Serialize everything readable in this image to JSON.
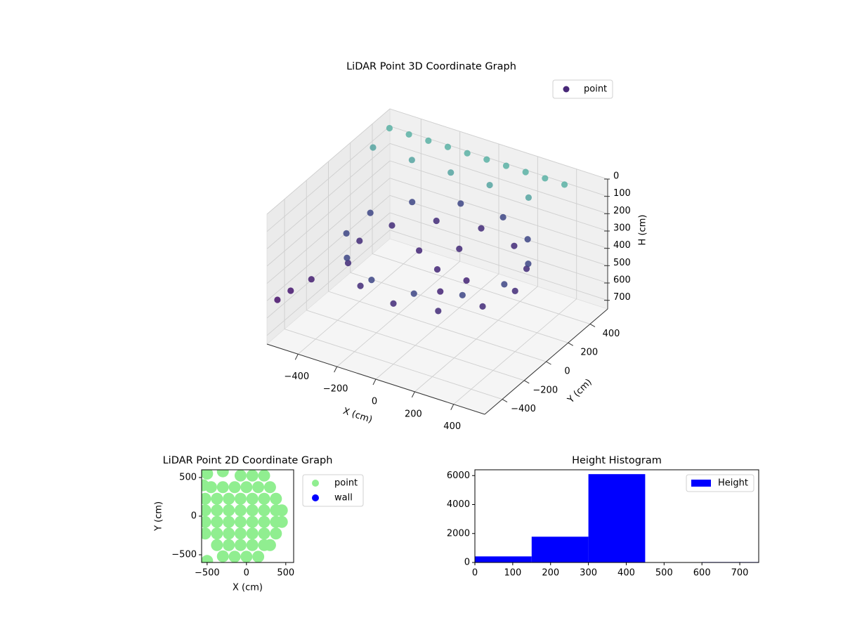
{
  "chart_data": [
    {
      "type": "scatter3d",
      "title": "LiDAR Point 3D Coordinate Graph",
      "xlabel": "X (cm)",
      "ylabel": "Y (cm)",
      "zlabel": "H (cm)",
      "xlim": [
        -560,
        560
      ],
      "ylim": [
        -560,
        560
      ],
      "zlim": [
        750,
        0
      ],
      "xticks": [
        {
          "value": -400,
          "label": "−400"
        },
        {
          "value": -200,
          "label": "−200"
        },
        0,
        200,
        400
      ],
      "yticks": [
        {
          "value": -400,
          "label": "−400"
        },
        {
          "value": -200,
          "label": "−200"
        },
        0,
        200,
        400
      ],
      "zticks": [
        0,
        100,
        200,
        300,
        400,
        500,
        600,
        700
      ],
      "grid": true,
      "legend": "upper right",
      "colormap": [
        "#5fbfa8",
        "#3b528b",
        "#46106b",
        "#46106b"
      ],
      "series": [
        {
          "name": "point",
          "color": "#482878",
          "x": [
            400,
            346,
            200,
            0,
            -200,
            -346,
            -400,
            -346,
            -200,
            0,
            200,
            346,
            406,
            297,
            109,
            -109,
            -297,
            -406,
            -406,
            -297,
            -109,
            109,
            297,
            406,
            0,
            150,
            -150,
            100,
            0,
            -500,
            -400,
            -300,
            -200,
            -100,
            0,
            100,
            200,
            300,
            400,
            -500,
            -300,
            -100,
            100,
            300,
            -540,
            -500,
            -450
          ],
          "y": [
            0,
            200,
            346,
            400,
            346,
            200,
            0,
            -200,
            -346,
            -400,
            -346,
            -200,
            109,
            297,
            406,
            406,
            297,
            109,
            -109,
            -297,
            -406,
            -406,
            -297,
            -109,
            0,
            0,
            100,
            -150,
            200,
            450,
            450,
            450,
            450,
            450,
            450,
            450,
            450,
            450,
            450,
            300,
            300,
            300,
            300,
            300,
            -500,
            -450,
            -350
          ],
          "z": [
            400,
            400,
            400,
            400,
            400,
            400,
            400,
            400,
            400,
            400,
            400,
            400,
            300,
            300,
            300,
            300,
            300,
            300,
            300,
            300,
            300,
            300,
            300,
            300,
            420,
            430,
            420,
            430,
            410,
            30,
            30,
            30,
            30,
            30,
            30,
            30,
            30,
            30,
            30,
            60,
            60,
            60,
            60,
            60,
            520,
            480,
            450
          ]
        }
      ]
    },
    {
      "type": "scatter",
      "title": "LiDAR Point 2D Coordinate Graph",
      "xlabel": "X (cm)",
      "ylabel": "Y (cm)",
      "xlim": [
        -570,
        600
      ],
      "ylim": [
        -600,
        600
      ],
      "xticks": [
        {
          "value": -500,
          "label": "−500"
        },
        0,
        500
      ],
      "yticks": [
        {
          "value": -500,
          "label": "−500"
        },
        0,
        500
      ],
      "grid": false,
      "legend": "outside upper right",
      "series": [
        {
          "name": "point",
          "color": "#90ee90",
          "x": [
            -75,
            75,
            225,
            -450,
            -300,
            -150,
            0,
            150,
            300,
            -525,
            -375,
            -225,
            -75,
            75,
            225,
            375,
            -525,
            -375,
            -225,
            -75,
            75,
            225,
            375,
            450,
            -525,
            -375,
            -225,
            -75,
            75,
            225,
            375,
            450,
            -525,
            -375,
            -225,
            -75,
            75,
            225,
            375,
            -375,
            -225,
            -75,
            75,
            225,
            300,
            -150,
            0,
            150,
            -500,
            -550,
            -300,
            -500,
            -300
          ],
          "y": [
            525,
            525,
            525,
            375,
            375,
            375,
            375,
            375,
            375,
            225,
            225,
            225,
            225,
            225,
            225,
            225,
            75,
            75,
            75,
            75,
            75,
            75,
            75,
            75,
            -75,
            -75,
            -75,
            -75,
            -75,
            -75,
            -75,
            -75,
            -225,
            -225,
            -225,
            -225,
            -225,
            -225,
            -225,
            -375,
            -375,
            -375,
            -375,
            -375,
            -375,
            -525,
            -525,
            -525,
            550,
            400,
            580,
            -580,
            -520
          ]
        },
        {
          "name": "wall",
          "color": "#0000ff",
          "x": [],
          "y": []
        }
      ]
    },
    {
      "type": "histogram",
      "title": "Height Histogram",
      "bins": [
        0,
        150,
        300,
        450,
        600,
        750
      ],
      "values": [
        420,
        1780,
        6100,
        0,
        30
      ],
      "series_name": "Height",
      "color": "#0000ff",
      "xlim": [
        0,
        750
      ],
      "ylim": [
        0,
        6400
      ],
      "xticks": [
        0,
        100,
        200,
        300,
        400,
        500,
        600,
        700
      ],
      "yticks": [
        0,
        2000,
        4000,
        6000
      ],
      "grid": false,
      "legend": "upper right"
    }
  ]
}
